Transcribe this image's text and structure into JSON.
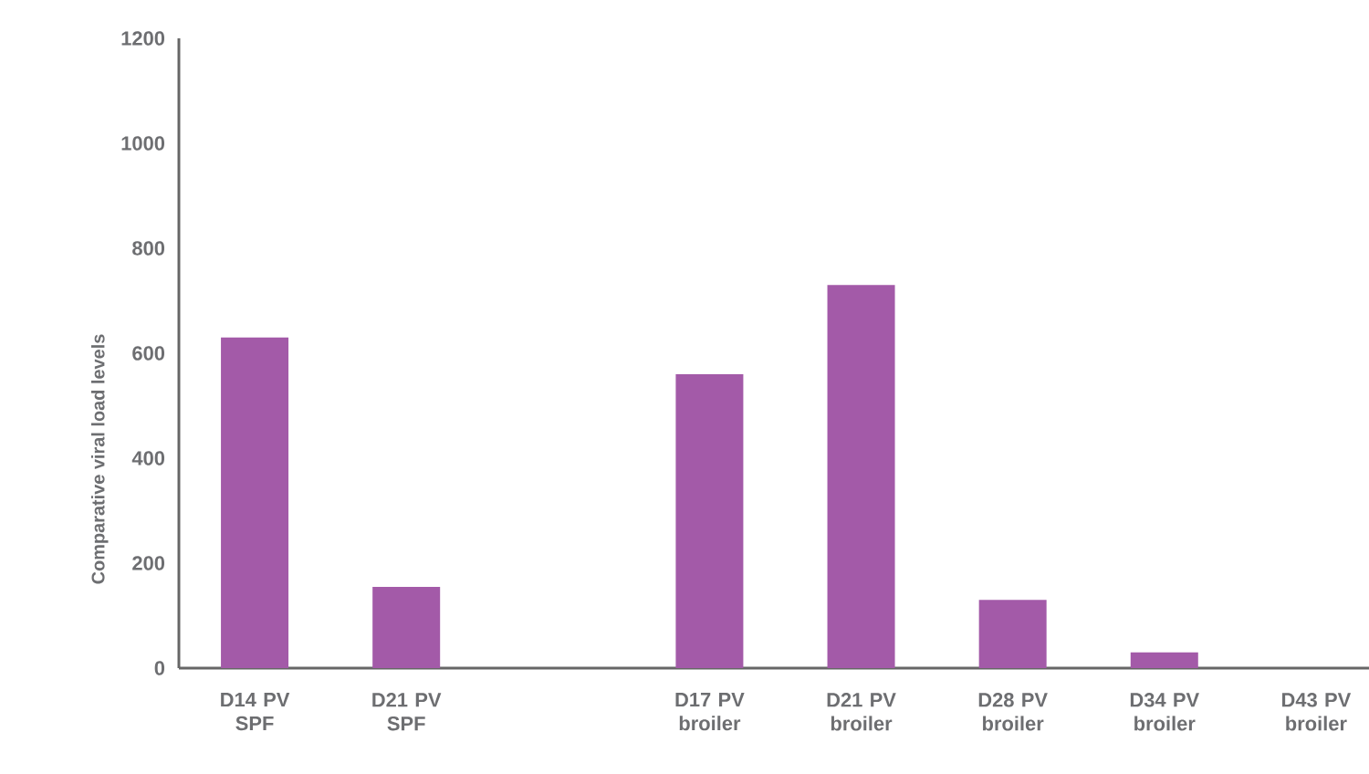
{
  "chart_data": {
    "type": "bar",
    "ylabel": "Comparative viral load levels",
    "categories": [
      "D14 PV SPF",
      "D21 PV SPF",
      null,
      "D17 PV broiler",
      "D21 PV broiler",
      "D28 PV broiler",
      "D34 PV broiler",
      "D43 PV broiler"
    ],
    "values": [
      630,
      155,
      null,
      560,
      730,
      130,
      30,
      0
    ],
    "color": "#a35aa8",
    "ylim": [
      0,
      1200
    ],
    "yticks": [
      0,
      200,
      400,
      600,
      800,
      1000,
      1200
    ],
    "grid": false
  }
}
